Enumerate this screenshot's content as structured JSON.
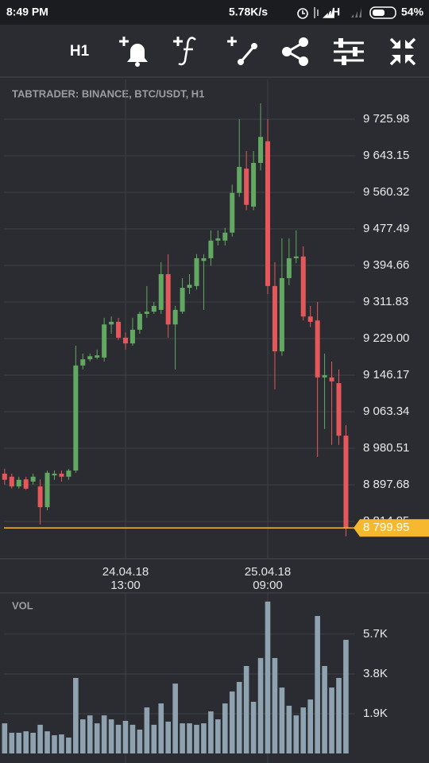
{
  "status_bar": {
    "time": "8:49 PM",
    "speed": "5.78K/s",
    "network": "H",
    "battery": "54%"
  },
  "toolbar": {
    "timeframe": "H1"
  },
  "chart_data": [
    {
      "type": "candlestick",
      "title": "TABTRADER: BINANCE, BTC/USDT, H1",
      "categories": [
        null,
        null,
        null,
        null,
        null,
        null,
        null,
        null,
        null,
        null,
        null,
        null,
        null,
        null,
        null,
        null,
        null,
        "24.04.18\n13:00",
        null,
        null,
        null,
        null,
        null,
        null,
        null,
        null,
        null,
        null,
        null,
        null,
        null,
        null,
        null,
        null,
        null,
        null,
        null,
        "25.04.18\n09:00",
        null,
        null,
        null,
        null,
        null,
        null,
        null,
        null,
        null,
        null,
        null
      ],
      "open": [
        8923,
        8916,
        8894,
        8910,
        8905,
        8894,
        8847,
        8919,
        8923,
        8916,
        8930,
        9168,
        9182,
        9186,
        9186,
        9261,
        9267,
        9231,
        9218,
        9249,
        9285,
        9290,
        9294,
        9375,
        9261,
        9290,
        9344,
        9348,
        9405,
        9411,
        9451,
        9451,
        9469,
        9559,
        9614,
        9528,
        9627,
        9676,
        9348,
        9200,
        9366,
        9411,
        9415,
        9279,
        9270,
        9141,
        9141,
        9128,
        9009
      ],
      "high": [
        8934,
        8923,
        8916,
        8916,
        8923,
        8910,
        8930,
        8930,
        8930,
        8934,
        9213,
        9195,
        9195,
        9204,
        9276,
        9279,
        9276,
        9243,
        9276,
        9290,
        9348,
        9312,
        9402,
        9420,
        9303,
        9366,
        9375,
        9420,
        9420,
        9474,
        9474,
        9480,
        9578,
        9726,
        9654,
        9654,
        9762,
        9726,
        9402,
        9456,
        9456,
        9474,
        9438,
        9303,
        9312,
        9195,
        9177,
        9159,
        9033
      ],
      "low": [
        8898,
        8889,
        8889,
        8886,
        8898,
        8808,
        8840,
        8909,
        8905,
        8909,
        8925,
        9159,
        9177,
        9182,
        9177,
        9240,
        9226,
        9204,
        9213,
        9240,
        9276,
        9285,
        9285,
        9231,
        9159,
        9285,
        9330,
        9340,
        9294,
        9394,
        9440,
        9440,
        9460,
        9550,
        9520,
        9520,
        9610,
        9330,
        9114,
        9190,
        9350,
        9400,
        9270,
        9255,
        8961,
        9024,
        8988,
        8988,
        8781
      ],
      "close": [
        8909,
        8894,
        8909,
        8889,
        8916,
        8847,
        8925,
        8923,
        8916,
        8930,
        9168,
        9182,
        9189,
        9191,
        9261,
        9267,
        9231,
        9218,
        9249,
        9285,
        9290,
        9303,
        9375,
        9261,
        9294,
        9344,
        9351,
        9411,
        9411,
        9451,
        9456,
        9469,
        9559,
        9618,
        9532,
        9627,
        9686,
        9348,
        9200,
        9366,
        9411,
        9415,
        9279,
        9267,
        9141,
        9146,
        9132,
        9009,
        8799.95
      ],
      "up_color": "#62a862",
      "down_color": "#e4585b",
      "ylim": [
        8735.6,
        9816.0
      ],
      "yticks": [
        {
          "value": 8814.85,
          "label": "8 814.85"
        },
        {
          "value": 8897.68,
          "label": "8 897.68"
        },
        {
          "value": 8980.51,
          "label": "8 980.51"
        },
        {
          "value": 9063.34,
          "label": "9 063.34"
        },
        {
          "value": 9146.17,
          "label": "9 146.17"
        },
        {
          "value": 9229.0,
          "label": "9 229.00"
        },
        {
          "value": 9311.83,
          "label": "9 311.83"
        },
        {
          "value": 9394.66,
          "label": "9 394.66"
        },
        {
          "value": 9477.49,
          "label": "9 477.49"
        },
        {
          "value": 9560.32,
          "label": "9 560.32"
        },
        {
          "value": 9643.15,
          "label": "9 643.15"
        },
        {
          "value": 9725.98,
          "label": "9 725.98"
        }
      ],
      "last_price": {
        "value": 8799.95,
        "label": "8 799.95"
      },
      "last_price_color": "#f5b82e",
      "grid": true
    },
    {
      "type": "bar",
      "title": "VOL",
      "values": [
        1440,
        990,
        990,
        1060,
        990,
        1370,
        1060,
        870,
        910,
        760,
        3610,
        1630,
        1820,
        1440,
        1820,
        1630,
        1370,
        1560,
        1370,
        1140,
        2200,
        1370,
        2390,
        1520,
        3340,
        1440,
        1440,
        1370,
        1440,
        2010,
        1630,
        2390,
        2960,
        3420,
        4180,
        2470,
        4560,
        7260,
        4560,
        3150,
        2280,
        1820,
        2200,
        2580,
        6570,
        4180,
        3150,
        3610,
        5430
      ],
      "color": "#8ea2b0",
      "ylim": [
        0,
        7520
      ],
      "yticks": [
        {
          "value": 1900,
          "label": "1.9K"
        },
        {
          "value": 3800,
          "label": "3.8K"
        },
        {
          "value": 5700,
          "label": "5.7K"
        }
      ],
      "grid": true
    }
  ]
}
